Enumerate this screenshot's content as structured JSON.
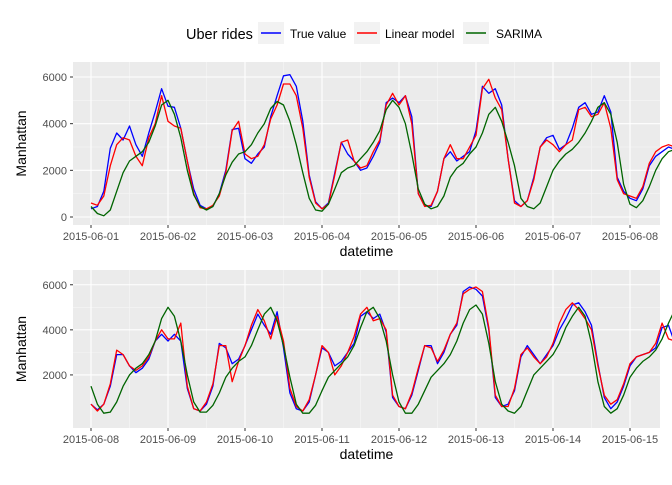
{
  "legend": {
    "title": "Uber rides",
    "items": [
      {
        "label": "True value",
        "color": "#0000FF"
      },
      {
        "label": "Linear model",
        "color": "#FF0000"
      },
      {
        "label": "SARIMA",
        "color": "#006400"
      }
    ]
  },
  "chart_data": [
    {
      "type": "line",
      "panel": "top",
      "xlabel": "datetime",
      "ylabel": "Manhattan",
      "xlim": [
        "2015-06-01",
        "2015-06-08"
      ],
      "x_ticks": [
        "2015-06-01",
        "2015-06-02",
        "2015-06-03",
        "2015-06-04",
        "2015-06-05",
        "2015-06-06",
        "2015-06-07",
        "2015-06-08"
      ],
      "ylim": [
        0,
        6300
      ],
      "y_ticks": [
        0,
        2000,
        4000,
        6000
      ],
      "x_start": "2015-06-01 00:00",
      "x_step_hours": 2,
      "grid": true,
      "series": [
        {
          "name": "True value",
          "color": "#0000FF",
          "values": [
            350,
            450,
            1100,
            2950,
            3600,
            3300,
            3900,
            3100,
            2600,
            3600,
            4500,
            5500,
            4750,
            4700,
            3800,
            2400,
            1200,
            500,
            350,
            450,
            1000,
            2000,
            3750,
            3800,
            2500,
            2300,
            2700,
            3000,
            4300,
            5200,
            6050,
            6100,
            5600,
            4100,
            1800,
            650,
            350,
            600,
            1900,
            3200,
            2700,
            2400,
            2000,
            2100,
            2600,
            3200,
            4900,
            5100,
            4900,
            5200,
            4300,
            1000,
            500,
            450,
            1100,
            2500,
            2800,
            2400,
            2600,
            2800,
            3700,
            5600,
            5300,
            5500,
            4800,
            2500,
            700,
            450,
            700,
            1700,
            3000,
            3400,
            3500,
            2900,
            3100,
            3800,
            4700,
            4900,
            4400,
            4500,
            5200,
            4500,
            1700,
            1100,
            800,
            700,
            1200,
            2200,
            2600,
            2800,
            3000,
            2900,
            3200,
            3700,
            4600,
            4900,
            3700,
            3600,
            4500,
            5000,
            3000,
            1200,
            650,
            650,
            1200,
            2200,
            2650,
            2650,
            2700,
            2800,
            3100,
            3000,
            2700,
            2550,
            2600,
            1450
          ]
        },
        {
          "name": "Linear model",
          "color": "#FF0000",
          "values": [
            600,
            500,
            900,
            2200,
            3100,
            3400,
            3300,
            2600,
            2200,
            3400,
            4000,
            5200,
            4100,
            3900,
            3800,
            2400,
            1000,
            400,
            350,
            500,
            900,
            1900,
            3700,
            4100,
            2700,
            2500,
            2600,
            3100,
            4200,
            4800,
            5700,
            5700,
            5200,
            3800,
            1700,
            600,
            350,
            550,
            1800,
            3200,
            3300,
            2400,
            2100,
            2200,
            2800,
            3300,
            4800,
            5300,
            4800,
            5200,
            4000,
            1000,
            450,
            500,
            1100,
            2500,
            3100,
            2500,
            2500,
            3000,
            3500,
            5500,
            5900,
            5100,
            4600,
            2500,
            600,
            450,
            700,
            1600,
            3000,
            3300,
            3100,
            2800,
            3100,
            3300,
            4600,
            4700,
            4300,
            4400,
            4900,
            3800,
            1600,
            1000,
            900,
            800,
            1300,
            2300,
            2800,
            3000,
            3100,
            3000,
            3500,
            4100,
            4800,
            4700,
            3700,
            3500,
            4100,
            5100,
            3000,
            1300,
            700,
            600,
            1400,
            2200,
            2600,
            2700,
            2800,
            2900,
            3200,
            3100,
            2600,
            2700,
            2800,
            2500
          ]
        },
        {
          "name": "SARIMA",
          "color": "#006400",
          "values": [
            450,
            150,
            50,
            300,
            1100,
            1900,
            2400,
            2600,
            2800,
            3200,
            3900,
            4800,
            5000,
            4400,
            3400,
            2000,
            950,
            450,
            300,
            450,
            1000,
            1800,
            2350,
            2700,
            2800,
            3100,
            3600,
            4000,
            4650,
            4950,
            4800,
            4100,
            3100,
            1900,
            800,
            300,
            250,
            550,
            1200,
            1900,
            2100,
            2200,
            2500,
            2800,
            3200,
            3700,
            4600,
            5000,
            4700,
            4000,
            2700,
            1200,
            550,
            350,
            450,
            900,
            1700,
            2100,
            2300,
            2700,
            3000,
            3600,
            4400,
            4700,
            4100,
            3200,
            2200,
            800,
            450,
            350,
            600,
            1300,
            2000,
            2400,
            2700,
            2900,
            3200,
            3600,
            4100,
            4700,
            4900,
            4400,
            3200,
            1400,
            550,
            400,
            700,
            1300,
            2000,
            2500,
            2800,
            2900,
            3100,
            3500,
            4100,
            4600,
            5000,
            4600,
            3200,
            1800,
            700,
            400,
            550,
            1000,
            1600,
            2100,
            2500,
            2700,
            2900,
            3300,
            3800,
            4600,
            5000,
            4700,
            3600,
            3000,
            2600
          ]
        }
      ]
    },
    {
      "type": "line",
      "panel": "bottom",
      "xlabel": "datetime",
      "ylabel": "Manhattan",
      "xlim": [
        "2015-06-08",
        "2015-06-15"
      ],
      "x_ticks": [
        "2015-06-08",
        "2015-06-09",
        "2015-06-10",
        "2015-06-11",
        "2015-06-12",
        "2015-06-13",
        "2015-06-14",
        "2015-06-15"
      ],
      "ylim": [
        0,
        6300
      ],
      "y_ticks": [
        2000,
        4000,
        6000
      ],
      "x_start": "2015-06-08 00:00",
      "x_step_hours": 2,
      "grid": true,
      "series": [
        {
          "name": "True value",
          "color": "#0000FF",
          "values": [
            700,
            450,
            700,
            1500,
            2900,
            2900,
            2400,
            2100,
            2300,
            2700,
            3500,
            3800,
            3500,
            3800,
            3500,
            1400,
            500,
            400,
            700,
            1500,
            3400,
            3200,
            2500,
            2700,
            3300,
            4000,
            4700,
            4200,
            3800,
            4800,
            3200,
            1200,
            500,
            400,
            800,
            2000,
            3200,
            3000,
            2400,
            2600,
            3000,
            3400,
            4600,
            4800,
            4500,
            4700,
            3900,
            1000,
            600,
            500,
            1100,
            2200,
            3300,
            3300,
            2500,
            3000,
            3800,
            4200,
            5700,
            5900,
            5800,
            5500,
            4000,
            1000,
            600,
            700,
            1300,
            2800,
            3300,
            2900,
            2500,
            2900,
            3300,
            4000,
            4500,
            5100,
            5200,
            4800,
            4200,
            2500,
            1000,
            500,
            800,
            1500,
            2400,
            2800,
            2900,
            3000,
            3200,
            4100,
            4200,
            3400,
            4700,
            4000,
            2200,
            900,
            500,
            800,
            1700,
            2300,
            2600,
            2500,
            2600,
            2800,
            3100,
            4000,
            3600,
            1600
          ]
        },
        {
          "name": "Linear model",
          "color": "#FF0000",
          "values": [
            700,
            400,
            700,
            1600,
            3100,
            2900,
            2400,
            2200,
            2400,
            2800,
            3500,
            4000,
            3600,
            3600,
            4300,
            1500,
            500,
            400,
            800,
            1600,
            3300,
            3300,
            1700,
            2600,
            3300,
            4200,
            4900,
            4400,
            3600,
            4600,
            3500,
            1400,
            600,
            400,
            900,
            2000,
            3300,
            3000,
            2000,
            2400,
            3000,
            3700,
            4700,
            5000,
            4400,
            4500,
            4000,
            1100,
            600,
            500,
            1200,
            2300,
            3300,
            3200,
            2600,
            3100,
            3800,
            4300,
            5600,
            5800,
            5900,
            5700,
            4100,
            1100,
            600,
            600,
            1400,
            2900,
            3200,
            2800,
            2500,
            2800,
            3400,
            4300,
            4900,
            5200,
            4900,
            4500,
            4000,
            2400,
            1100,
            700,
            900,
            1600,
            2500,
            2800,
            2900,
            3000,
            3400,
            4300,
            3600,
            3500,
            4800,
            4100,
            2200,
            1000,
            500,
            900,
            1700,
            2300,
            2500,
            2500,
            2800,
            2900,
            3200,
            4400,
            4700,
            3300
          ]
        },
        {
          "name": "SARIMA",
          "color": "#006400",
          "values": [
            1500,
            700,
            300,
            350,
            800,
            1500,
            2000,
            2300,
            2500,
            2900,
            3500,
            4500,
            5000,
            4600,
            3500,
            2000,
            800,
            350,
            350,
            650,
            1200,
            1900,
            2300,
            2600,
            2800,
            3300,
            4000,
            4700,
            5000,
            4400,
            3300,
            1900,
            700,
            300,
            300,
            650,
            1300,
            1900,
            2200,
            2500,
            2800,
            3300,
            4100,
            4800,
            5000,
            4500,
            3500,
            2000,
            800,
            300,
            300,
            700,
            1300,
            1900,
            2200,
            2500,
            2900,
            3500,
            4300,
            4900,
            5100,
            4700,
            3400,
            1700,
            700,
            400,
            300,
            600,
            1300,
            2000,
            2300,
            2600,
            2900,
            3400,
            4100,
            4600,
            5000,
            4600,
            3400,
            1700,
            600,
            300,
            500,
            1100,
            1900,
            2300,
            2600,
            2800,
            3100,
            3600,
            4300,
            4900,
            5000,
            4300,
            3000,
            1400,
            600,
            350,
            500,
            1100,
            1800,
            2200,
            2500,
            2800,
            3200,
            3800,
            4600,
            5000,
            4700,
            3500,
            3100,
            2500
          ]
        }
      ]
    }
  ]
}
